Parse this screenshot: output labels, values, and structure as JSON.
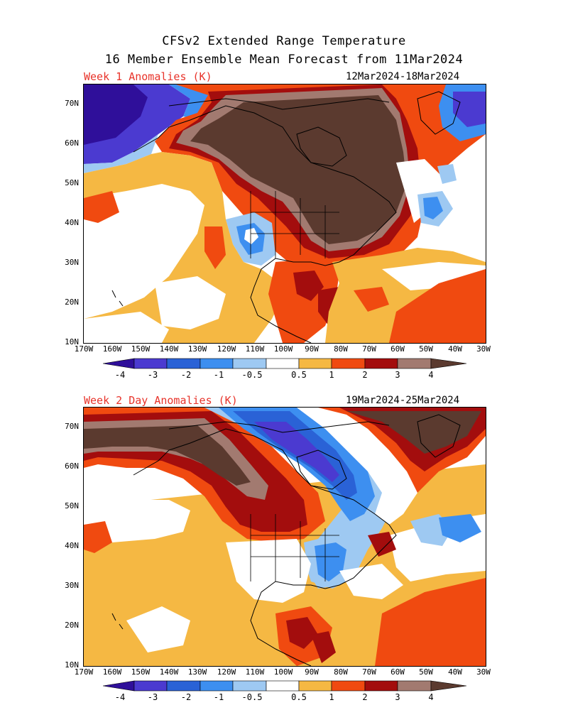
{
  "title": {
    "line1": "CFSv2 Extended Range Temperature",
    "line2": "16 Member Ensemble Mean Forecast from 11Mar2024"
  },
  "panels": [
    {
      "label": "Week 1 Anomalies (K)",
      "dates": "12Mar2024-18Mar2024"
    },
    {
      "label": "Week 2 Day Anomalies (K)",
      "dates": "19Mar2024-25Mar2024"
    }
  ],
  "lat_labels": [
    "70N",
    "60N",
    "50N",
    "40N",
    "30N",
    "20N",
    "10N"
  ],
  "lon_labels": [
    "170W",
    "160W",
    "150W",
    "140W",
    "130W",
    "120W",
    "110W",
    "100W",
    "90W",
    "80W",
    "70W",
    "60W",
    "50W",
    "40W",
    "30W"
  ],
  "colorbar": {
    "labels": [
      "-4",
      "-3",
      "-2",
      "-1",
      "-0.5",
      "0.5",
      "1",
      "2",
      "3",
      "4"
    ],
    "colors": [
      "#2f0f9a",
      "#4b3ad0",
      "#2a62d6",
      "#3d8ff0",
      "#9ec9f2",
      "#ffffff",
      "#f5b843",
      "#f04a10",
      "#a30d0d",
      "#a27a70",
      "#5b3a2f"
    ]
  }
}
